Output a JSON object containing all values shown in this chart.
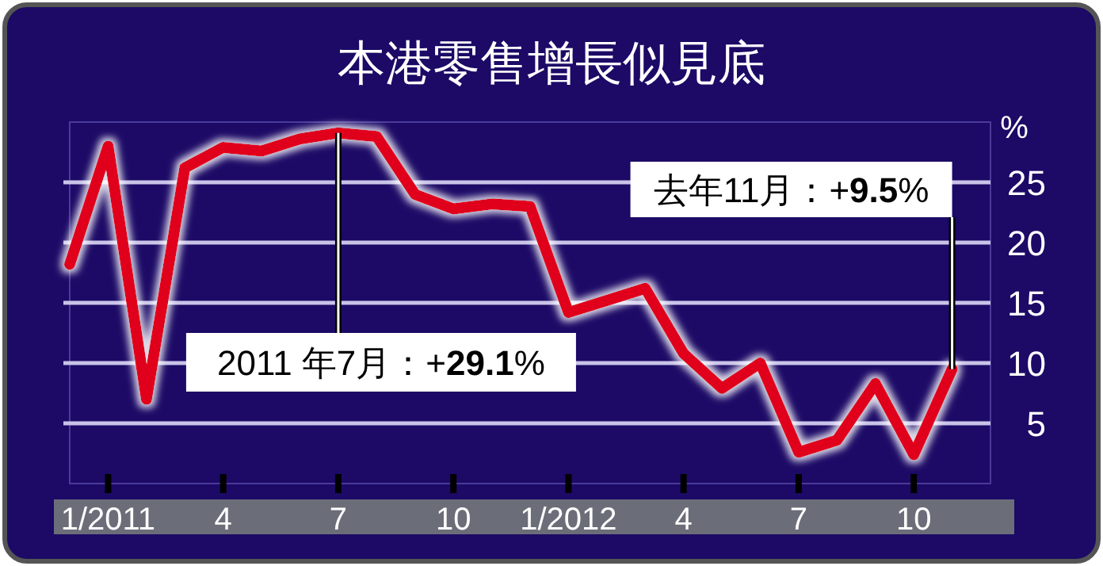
{
  "chart_data": {
    "type": "line",
    "title": "本港零售增長似見底",
    "ylabel": "%",
    "x": [
      "2010-12",
      "2011-01",
      "2011-02",
      "2011-03",
      "2011-04",
      "2011-05",
      "2011-06",
      "2011-07",
      "2011-08",
      "2011-09",
      "2011-10",
      "2011-11",
      "2011-12",
      "2012-01",
      "2012-02",
      "2012-03",
      "2012-04",
      "2012-05",
      "2012-06",
      "2012-07",
      "2012-08",
      "2012-09",
      "2012-10",
      "2012-11"
    ],
    "series": [
      {
        "color": "#e0001b",
        "values": [
          18.2,
          28,
          7,
          26.2,
          27.9,
          27.6,
          28.6,
          29.1,
          28.8,
          24,
          22.8,
          23.2,
          23,
          14.2,
          15.2,
          16.2,
          10.8,
          7.9,
          10,
          2.6,
          3.6,
          8.3,
          2.4,
          9.5
        ]
      }
    ],
    "xticks": [
      {
        "value": "2011-01",
        "label": "1/2011"
      },
      {
        "value": "2011-04",
        "label": "4"
      },
      {
        "value": "2011-07",
        "label": "7"
      },
      {
        "value": "2011-10",
        "label": "10"
      },
      {
        "value": "2012-01",
        "label": "1/2012"
      },
      {
        "value": "2012-04",
        "label": "4"
      },
      {
        "value": "2012-07",
        "label": "7"
      },
      {
        "value": "2012-10",
        "label": "10"
      }
    ],
    "xlim": [
      "2010-12",
      "2012-12"
    ],
    "ylim": [
      0,
      30
    ],
    "yticks": [
      5,
      10,
      15,
      20,
      25
    ],
    "grid": "y",
    "marker": "none",
    "line_style": "solid",
    "annotations": [
      {
        "text": "2011 年7月：+29.1%",
        "x": "2011-07",
        "y": 29.1
      },
      {
        "text": "去年11月：+9.5%",
        "x": "2012-11",
        "y": 9.5
      }
    ]
  }
}
